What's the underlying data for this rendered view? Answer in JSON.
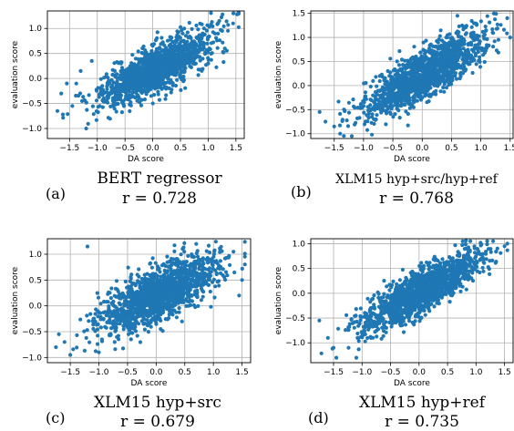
{
  "chart_data": [
    {
      "type": "scatter",
      "panel": "a",
      "panel_label": "(a)",
      "caption": "BERT regressor",
      "r_label": "r = 0.728",
      "correlation": 0.728,
      "xlabel": "DA score",
      "ylabel": "evaluation score",
      "xlim": [
        -1.9,
        1.65
      ],
      "ylim": [
        -1.2,
        1.35
      ],
      "xticks": [
        -1.5,
        -1.0,
        -0.5,
        0.0,
        0.5,
        1.0,
        1.5
      ],
      "yticks": [
        -1.0,
        -0.5,
        0.0,
        0.5,
        1.0
      ],
      "xtick_labels": [
        "−1.5",
        "−1.0",
        "−0.5",
        "0.0",
        "0.5",
        "1.0",
        "1.5"
      ],
      "ytick_labels": [
        "−1.0",
        "−0.5",
        "0.0",
        "0.5",
        "1.0"
      ],
      "grid": true,
      "point_color": "#1f77b4",
      "fit": {
        "slope": 0.55,
        "intercept": 0.15,
        "noise": 0.22
      },
      "x": [
        -1.72,
        -1.65,
        -1.55,
        -1.45,
        -1.3,
        1.52,
        1.45,
        1.3,
        1.2,
        -1.2,
        -0.9,
        0.9,
        -1.62,
        -1.1,
        1.0
      ],
      "y": [
        -0.65,
        -0.3,
        -0.1,
        -0.55,
        0.15,
        1.28,
        1.1,
        0.6,
        1.15,
        -1.0,
        -1.2,
        0.9,
        -0.72,
        0.35,
        0.3
      ]
    },
    {
      "type": "scatter",
      "panel": "b",
      "panel_label": "(b)",
      "caption": "XLM15 hyp+src/hyp+ref",
      "r_label": "r = 0.768",
      "correlation": 0.768,
      "xlabel": "DA score",
      "ylabel": "evaluation score",
      "xlim": [
        -1.9,
        1.55
      ],
      "ylim": [
        -1.1,
        1.55
      ],
      "xticks": [
        -1.5,
        -1.0,
        -0.5,
        0.0,
        0.5,
        1.0,
        1.5
      ],
      "yticks": [
        -1.0,
        -0.5,
        0.0,
        0.5,
        1.0,
        1.5
      ],
      "xtick_labels": [
        "−1.5",
        "−1.0",
        "−0.5",
        "0.0",
        "0.5",
        "1.0",
        "1.5"
      ],
      "ytick_labels": [
        "−1.0",
        "−0.5",
        "0.0",
        "0.5",
        "1.0",
        "1.5"
      ],
      "grid": true,
      "point_color": "#1f77b4",
      "fit": {
        "slope": 0.68,
        "intercept": 0.2,
        "noise": 0.24
      },
      "x": [
        -1.75,
        -1.65,
        -1.5,
        -1.4,
        1.45,
        1.3,
        1.2,
        -1.2,
        0.6,
        1.5
      ],
      "y": [
        -0.55,
        -0.75,
        -0.85,
        -1.0,
        1.4,
        0.95,
        1.1,
        -1.05,
        1.45,
        1.0
      ]
    },
    {
      "type": "scatter",
      "panel": "c",
      "panel_label": "(c)",
      "caption": "XLM15 hyp+src",
      "r_label": "r = 0.679",
      "correlation": 0.679,
      "xlabel": "DA score",
      "ylabel": "evaluation score",
      "xlim": [
        -1.9,
        1.65
      ],
      "ylim": [
        -1.1,
        1.3
      ],
      "xticks": [
        -1.5,
        -1.0,
        -0.5,
        0.0,
        0.5,
        1.0,
        1.5
      ],
      "yticks": [
        -1.0,
        -0.5,
        0.0,
        0.5,
        1.0
      ],
      "xtick_labels": [
        "−1.5",
        "−1.0",
        "−0.5",
        "0.0",
        "0.5",
        "1.0",
        "1.5"
      ],
      "ytick_labels": [
        "−1.0",
        "−0.5",
        "0.0",
        "0.5",
        "1.0"
      ],
      "grid": true,
      "point_color": "#1f77b4",
      "fit": {
        "slope": 0.5,
        "intercept": 0.2,
        "noise": 0.25
      },
      "x": [
        -1.75,
        -1.7,
        -1.6,
        -1.5,
        1.5,
        1.45,
        1.35,
        -1.2,
        -1.0,
        0.7
      ],
      "y": [
        -0.8,
        -0.55,
        -0.7,
        -0.95,
        0.5,
        0.2,
        1.05,
        1.15,
        -0.9,
        1.2
      ]
    },
    {
      "type": "scatter",
      "panel": "d",
      "panel_label": "(d)",
      "caption": "XLM15 hyp+ref",
      "r_label": "r = 0.735",
      "correlation": 0.735,
      "xlabel": "DA score",
      "ylabel": "evaluation score",
      "xlim": [
        -1.9,
        1.65
      ],
      "ylim": [
        -1.4,
        1.1
      ],
      "xticks": [
        -1.5,
        -1.0,
        -0.5,
        0.0,
        0.5,
        1.0,
        1.5
      ],
      "yticks": [
        -1.0,
        -0.5,
        0.0,
        0.5,
        1.0
      ],
      "xtick_labels": [
        "−1.5",
        "−1.0",
        "−0.5",
        "0.0",
        "0.5",
        "1.0",
        "1.5"
      ],
      "ytick_labels": [
        "−1.0",
        "−0.5",
        "0.0",
        "0.5",
        "1.0"
      ],
      "grid": true,
      "point_color": "#1f77b4",
      "fit": {
        "slope": 0.6,
        "intercept": 0.0,
        "noise": 0.22
      },
      "x": [
        -1.75,
        -1.6,
        -1.5,
        -1.45,
        1.5,
        1.55,
        1.3,
        -1.1,
        0.9
      ],
      "y": [
        -0.55,
        -0.9,
        -1.1,
        -1.3,
        0.95,
        1.0,
        1.05,
        -1.3,
        1.05
      ]
    }
  ]
}
